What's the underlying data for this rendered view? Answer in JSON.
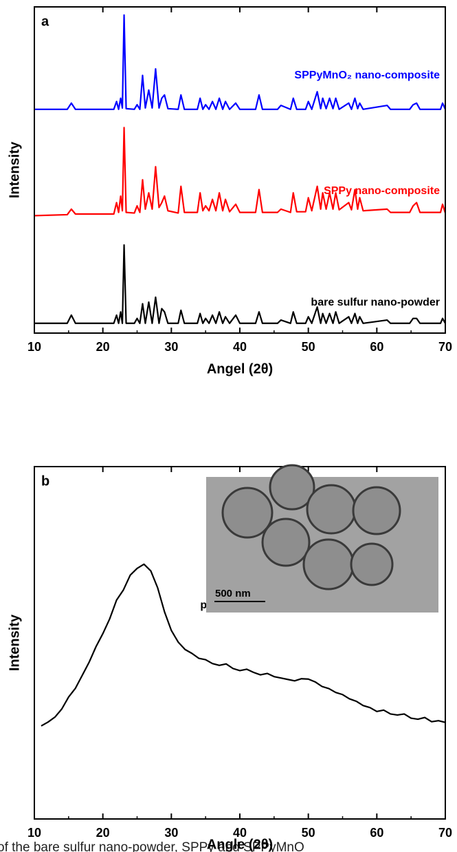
{
  "chart_data": [
    {
      "type": "line",
      "panel": "a",
      "ylabel": "Intensity",
      "xlabel": "Angel (2θ)",
      "xlim": [
        10,
        70
      ],
      "xticks": [
        10,
        20,
        30,
        40,
        50,
        60,
        70
      ],
      "ylim": [
        0,
        100
      ],
      "x": [
        10,
        14.8,
        15.4,
        16.0,
        21.6,
        22.0,
        22.3,
        22.6,
        22.85,
        23.1,
        23.4,
        24.6,
        25.0,
        25.4,
        25.8,
        26.2,
        26.7,
        27.2,
        27.7,
        28.2,
        28.6,
        29.0,
        29.5,
        31.0,
        31.4,
        31.9,
        33.8,
        34.2,
        34.6,
        35.0,
        35.5,
        36.0,
        36.5,
        37.0,
        37.5,
        37.9,
        38.5,
        39.4,
        40.0,
        42.3,
        42.8,
        43.3,
        45.5,
        46.0,
        47.4,
        47.8,
        48.3,
        49.6,
        50.0,
        50.5,
        51.3,
        51.8,
        52.1,
        52.6,
        53.1,
        53.6,
        54.0,
        54.5,
        55.9,
        56.3,
        56.8,
        57.2,
        57.5,
        58.0,
        61.5,
        62.0,
        64.8,
        65.3,
        65.8,
        66.3,
        69.3,
        69.6,
        70
      ],
      "series": [
        {
          "name": "SPPyMnO₂ nano-composite",
          "color": "#0000ff",
          "values": [
            68.6,
            68.6,
            70.5,
            68.6,
            68.6,
            71,
            68.6,
            72,
            69,
            97.5,
            68.8,
            68.6,
            70,
            68.6,
            79,
            69,
            74.5,
            69,
            81,
            69,
            72,
            73,
            68.8,
            68.6,
            73,
            68.6,
            68.6,
            72,
            68.6,
            70,
            68.6,
            71,
            68.6,
            72,
            68.6,
            71,
            68.6,
            70.5,
            68.6,
            68.6,
            73,
            68.6,
            68.6,
            69.8,
            68.6,
            72,
            68.6,
            68.6,
            71,
            68.6,
            74,
            68.8,
            72,
            68.8,
            72,
            68.8,
            72,
            68.6,
            70.5,
            68.6,
            72,
            68.8,
            70.5,
            68.6,
            69.8,
            68.6,
            68.6,
            70,
            70.5,
            68.6,
            68.6,
            70.5,
            68.6
          ]
        },
        {
          "name": "SPPy nano-composite",
          "color": "#ff0000",
          "values": [
            36,
            36.3,
            38,
            36.5,
            36.5,
            40,
            37,
            42,
            37.5,
            63,
            37,
            36.8,
            39,
            37,
            47,
            38,
            43,
            38,
            51,
            38.5,
            40,
            42,
            37.5,
            36.8,
            45,
            37,
            37,
            43,
            37.5,
            39,
            37.5,
            41,
            37.5,
            43,
            37.5,
            41,
            37.2,
            39.5,
            37,
            37,
            44,
            37,
            37,
            38,
            37,
            43,
            37.2,
            37.2,
            41.5,
            37.5,
            45,
            38,
            43,
            38,
            43,
            38,
            43,
            37.8,
            40,
            37.8,
            44,
            38,
            41.5,
            37.5,
            38,
            37,
            37,
            39,
            40,
            37,
            37,
            39.5,
            36.8
          ]
        },
        {
          "name": "bare sulfur nano-powder",
          "color": "#000000",
          "values": [
            3,
            3,
            5.5,
            3,
            3,
            5.5,
            3,
            6.5,
            3,
            27,
            3,
            3,
            4.5,
            3,
            9,
            3,
            9.5,
            3,
            11,
            3,
            7.5,
            6.5,
            3,
            3,
            7,
            3,
            3,
            6,
            3,
            4.5,
            3,
            5.5,
            3,
            6.5,
            3,
            5,
            3,
            5.5,
            3,
            3,
            6.5,
            3,
            3,
            4,
            3,
            6.5,
            3,
            3,
            5,
            3,
            8,
            3,
            6,
            3,
            6,
            3,
            6.5,
            3,
            5,
            3,
            6,
            3,
            5,
            3,
            4,
            3,
            3,
            4.5,
            4.5,
            3,
            3,
            4.5,
            3
          ]
        }
      ]
    },
    {
      "type": "line",
      "panel": "b",
      "ylabel": "Intensity",
      "xlabel": "Angle (2θ)",
      "xlim": [
        10,
        70
      ],
      "xticks": [
        10,
        20,
        30,
        40,
        50,
        60,
        70
      ],
      "ylim": [
        0,
        100
      ],
      "annotations": [
        "500 nm"
      ],
      "x": [
        11,
        12,
        13,
        14,
        15,
        16,
        17,
        18,
        19,
        20,
        21,
        22,
        23,
        24,
        25,
        26,
        27,
        28,
        29,
        30,
        31,
        32,
        33,
        34,
        35,
        36,
        37,
        38,
        39,
        40,
        41,
        42,
        43,
        44,
        45,
        46,
        47,
        48,
        49,
        50,
        51,
        52,
        53,
        54,
        55,
        56,
        57,
        58,
        59,
        60,
        61,
        62,
        63,
        64,
        65,
        66,
        67,
        68,
        69,
        70
      ],
      "series": [
        {
          "name": "polypyrrole",
          "color": "#000000",
          "values": [
            26.4,
            27.5,
            28.9,
            31.2,
            34.6,
            37.1,
            40.8,
            44.5,
            48.9,
            52.6,
            56.8,
            62.1,
            65.0,
            69.2,
            71.1,
            72.3,
            70.4,
            65.6,
            58.8,
            53.5,
            50.2,
            48.1,
            47.0,
            45.6,
            45.2,
            44.1,
            43.6,
            44.0,
            42.7,
            42.1,
            42.5,
            41.6,
            40.9,
            41.3,
            40.4,
            40.0,
            39.6,
            39.2,
            39.8,
            39.7,
            38.9,
            37.6,
            37.0,
            35.9,
            35.3,
            34.1,
            33.4,
            32.2,
            31.6,
            30.5,
            30.9,
            29.8,
            29.5,
            29.8,
            28.6,
            28.3,
            28.8,
            27.6,
            27.9,
            27.4
          ]
        }
      ]
    }
  ],
  "caption": "of the bare sulfur nano-powder, SPPy and SPPyMnO"
}
